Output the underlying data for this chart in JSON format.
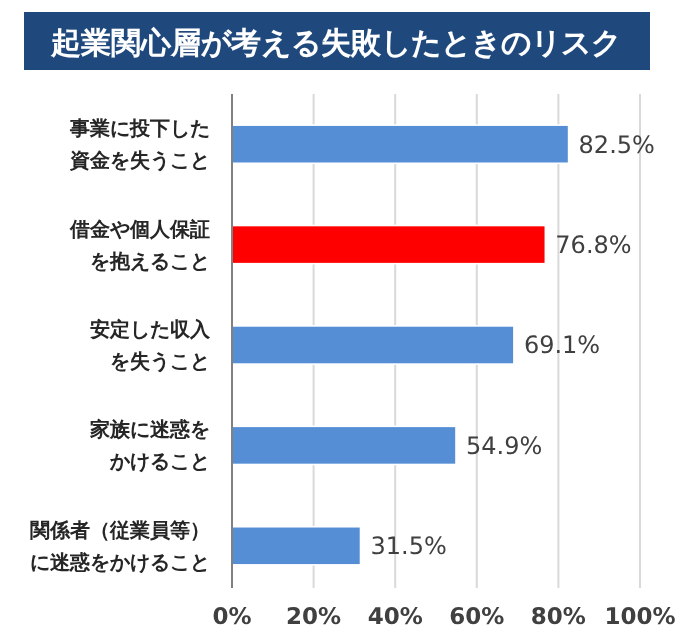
{
  "chart_data": {
    "type": "bar",
    "orientation": "horizontal",
    "title": "起業関心層が考える失敗したときのリスク",
    "categories": [
      "事業に投下した資金を失うこと",
      "借金や個人保証を抱えること",
      "安定した収入を失うこと",
      "家族に迷惑をかけること",
      "関係者（従業員等）に迷惑をかけること"
    ],
    "values": [
      82.5,
      76.8,
      69.1,
      54.9,
      31.5
    ],
    "colors": [
      "#558ed5",
      "#ff0000",
      "#558ed5",
      "#558ed5",
      "#558ed5"
    ],
    "value_labels": [
      "82.5%",
      "76.8%",
      "69.1%",
      "54.9%",
      "31.5%"
    ],
    "xlim": [
      0,
      100
    ],
    "xticks": [
      {
        "value": 0,
        "label": "0%"
      },
      {
        "value": 20,
        "label": "20%"
      },
      {
        "value": 40,
        "label": "40%"
      },
      {
        "value": 60,
        "label": "60%"
      },
      {
        "value": 80,
        "label": "80%"
      },
      {
        "value": 100,
        "label": "100%"
      }
    ],
    "grid": "x"
  }
}
